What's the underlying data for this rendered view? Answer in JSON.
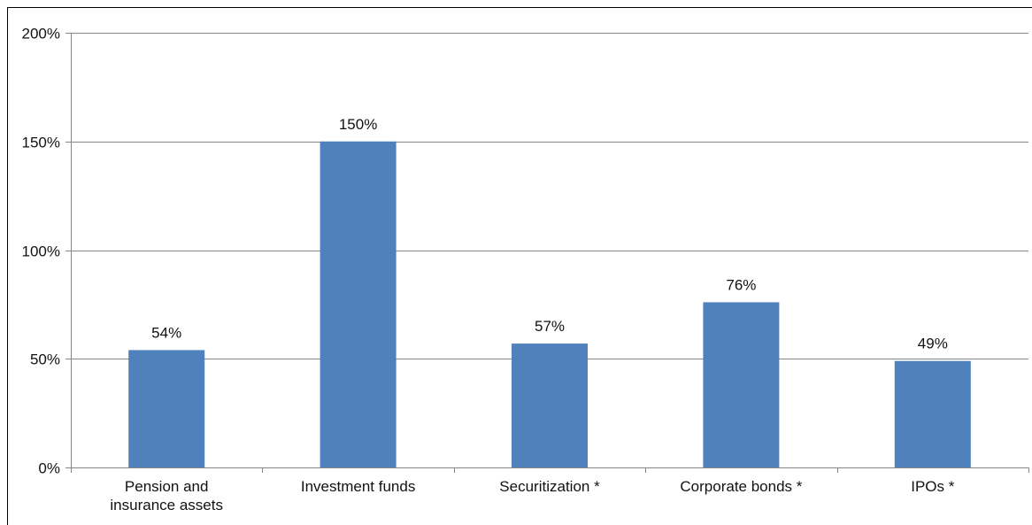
{
  "chart_data": {
    "type": "bar",
    "title": "",
    "xlabel": "",
    "ylabel": "",
    "categories": [
      "Pension and insurance assets",
      "Investment funds",
      "Securitization *",
      "Corporate bonds *",
      "IPOs *"
    ],
    "category_lines": [
      [
        "Pension and",
        "insurance assets"
      ],
      [
        "Investment funds"
      ],
      [
        "Securitization *"
      ],
      [
        "Corporate bonds *"
      ],
      [
        "IPOs *"
      ]
    ],
    "values": [
      54,
      150,
      57,
      76,
      49
    ],
    "value_labels": [
      "54%",
      "150%",
      "57%",
      "76%",
      "49%"
    ],
    "ylim": [
      0,
      200
    ],
    "yticks": [
      0,
      50,
      100,
      150,
      200
    ],
    "ytick_labels": [
      "0%",
      "50%",
      "100%",
      "150%",
      "200%"
    ],
    "grid": true,
    "legend": "none",
    "colors": {
      "bar": "#4f81bd",
      "grid": "#868686",
      "axis": "#868686",
      "frame": "#000000",
      "text": "#111111"
    }
  }
}
